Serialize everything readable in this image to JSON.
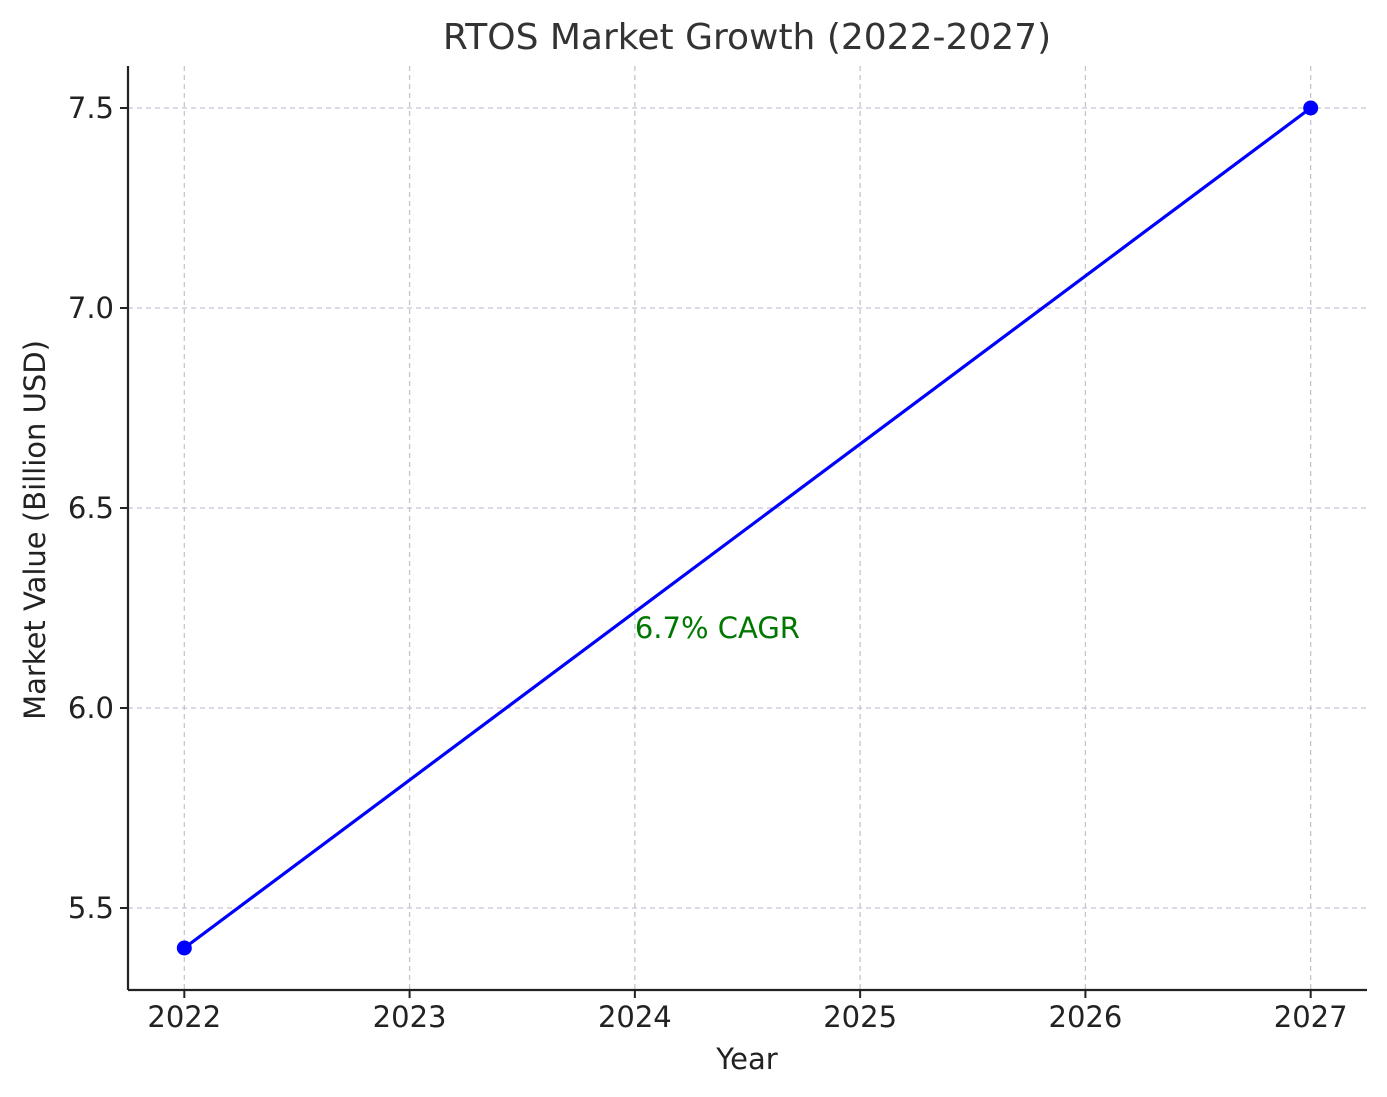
{
  "chart_data": {
    "type": "line",
    "title": "RTOS Market Growth (2022-2027)",
    "xlabel": "Year",
    "ylabel": "Market Value (Billion USD)",
    "x": [
      2022,
      2027
    ],
    "series": [
      {
        "values": [
          5.4,
          7.5
        ],
        "color": "#0000ff",
        "marker": "circle"
      }
    ],
    "xticks": [
      "2022",
      "2023",
      "2024",
      "2025",
      "2026",
      "2027"
    ],
    "xtick_values": [
      2022,
      2023,
      2024,
      2025,
      2026,
      2027
    ],
    "yticks": [
      "5.5",
      "6.0",
      "6.5",
      "7.0",
      "7.5"
    ],
    "ytick_values": [
      5.5,
      6.0,
      6.5,
      7.0,
      7.5
    ],
    "xlim": [
      2021.75,
      2027.25
    ],
    "ylim": [
      5.295,
      7.605
    ],
    "grid": true,
    "annotations": [
      {
        "text": "6.7% CAGR",
        "x": 2024,
        "y": 6.2,
        "color": "#007700"
      }
    ]
  }
}
